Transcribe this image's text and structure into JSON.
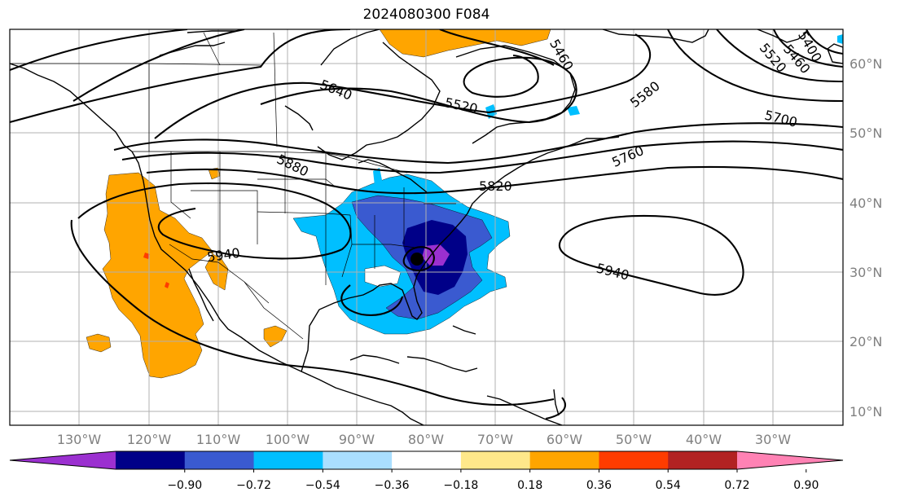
{
  "title": "2024080300 F084",
  "lon_ticks": [
    "130°W",
    "120°W",
    "110°W",
    "100°W",
    "90°W",
    "80°W",
    "70°W",
    "60°W",
    "50°W",
    "40°W",
    "30°W"
  ],
  "lat_ticks": [
    "60°N",
    "50°N",
    "40°N",
    "30°N",
    "20°N",
    "10°N"
  ],
  "contour_labels": [
    "5640",
    "5520",
    "5460",
    "5580",
    "5520",
    "5460",
    "5400",
    "5700",
    "5760",
    "5880",
    "5820",
    "5940",
    "5940"
  ],
  "colorbar": {
    "ticks": [
      "−0.90",
      "−0.72",
      "−0.54",
      "−0.36",
      "−0.18",
      "0.18",
      "0.36",
      "0.54",
      "0.72",
      "0.90"
    ],
    "colors": [
      "#9b30d0",
      "#000088",
      "#3a5ad0",
      "#00bfff",
      "#aadfff",
      "#ffffff",
      "#ffe88a",
      "#ffa500",
      "#ff3c00",
      "#b22222",
      "#ff82b4"
    ]
  }
}
